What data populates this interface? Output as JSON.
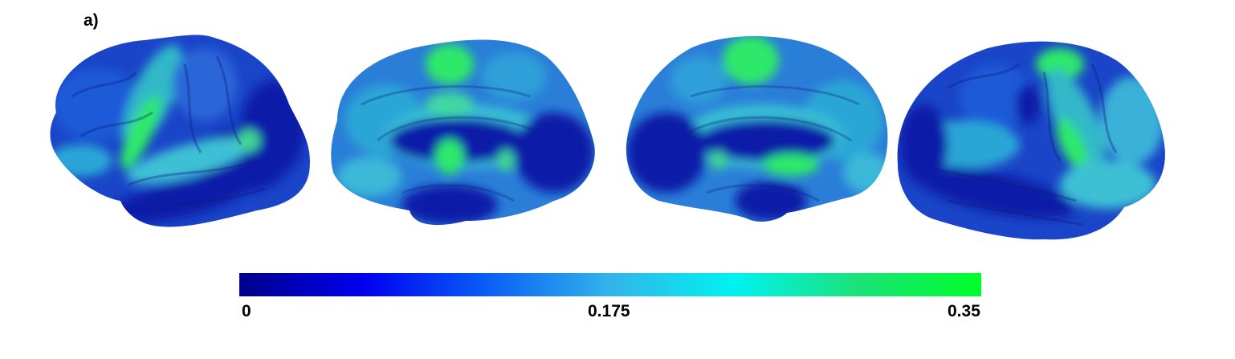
{
  "panel_label": "a)",
  "views": [
    {
      "name": "left-lateral-hemisphere"
    },
    {
      "name": "left-medial-hemisphere"
    },
    {
      "name": "right-medial-hemisphere"
    },
    {
      "name": "right-lateral-hemisphere"
    }
  ],
  "colorbar": {
    "min_label": "0",
    "mid_label": "0.175",
    "max_label": "0.35",
    "range": [
      0,
      0.35
    ],
    "colormap": [
      "#00008c",
      "#0000f0",
      "#0a5ef5",
      "#33b4ea",
      "#00f2f0",
      "#1be27a",
      "#00ff2a"
    ]
  },
  "colors": {
    "deep_blue": "#0a1aa8",
    "mid_blue": "#1e55d6",
    "light_blue": "#2aa6d6",
    "cyan": "#3ec8d8",
    "green": "#2ee86a"
  }
}
